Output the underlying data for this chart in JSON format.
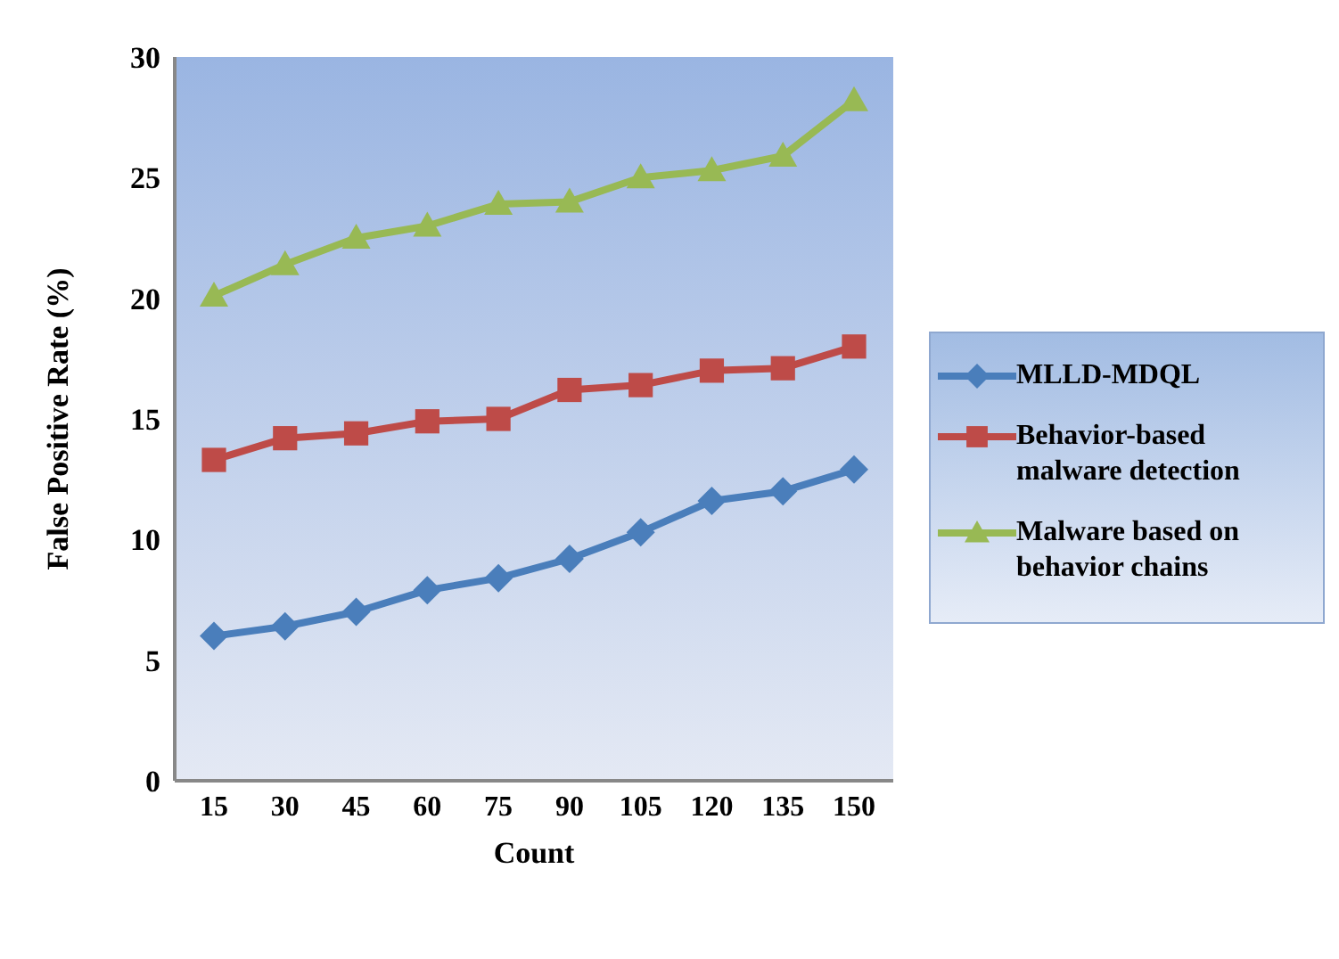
{
  "chart_data": {
    "type": "line",
    "xlabel": "Count",
    "ylabel": "False Positive Rate (%)",
    "categories": [
      "15",
      "30",
      "45",
      "60",
      "75",
      "90",
      "105",
      "120",
      "135",
      "150"
    ],
    "series": [
      {
        "name": "MLLD-MDQL",
        "color": "#4a7ebb",
        "marker": "diamond",
        "values": [
          6.0,
          6.4,
          7.0,
          7.9,
          8.4,
          9.2,
          10.3,
          11.6,
          12.0,
          12.9
        ]
      },
      {
        "name": "Behavior-based malware detection",
        "color": "#be4b48",
        "marker": "square",
        "values": [
          13.3,
          14.2,
          14.4,
          14.9,
          15.0,
          16.2,
          16.4,
          17.0,
          17.1,
          18.0
        ]
      },
      {
        "name": "Malware based on behavior chains",
        "color": "#98b954",
        "marker": "triangle",
        "values": [
          20.1,
          21.4,
          22.5,
          23.0,
          23.9,
          24.0,
          25.0,
          25.3,
          25.9,
          28.2
        ]
      }
    ],
    "ylim": [
      0,
      30
    ],
    "yticks": [
      0,
      5,
      10,
      15,
      20,
      25,
      30
    ],
    "grid": false,
    "legend": "right"
  }
}
